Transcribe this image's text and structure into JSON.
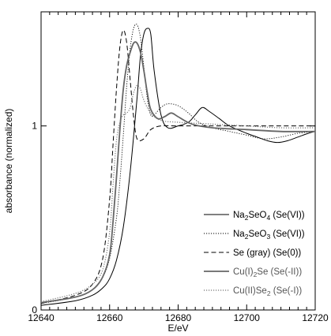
{
  "chart_data": {
    "type": "line",
    "xlabel": "E/eV",
    "ylabel": "absorbance (normalized)",
    "xlim": [
      12640,
      12720
    ],
    "ylim": [
      0,
      1.62
    ],
    "x_ticks": [
      12640,
      12660,
      12680,
      12700,
      12720
    ],
    "x_tick_labels": [
      "12640",
      "12660",
      "12680",
      "12700",
      "12720"
    ],
    "y_ticks": [
      0,
      1
    ],
    "y_tick_labels": [
      "0",
      "1"
    ],
    "grid": false,
    "legend_position": "bottom-right",
    "series": [
      {
        "name": "Na2SeO4 (Se(VI))",
        "legend_parts": [
          [
            "Na",
            ""
          ],
          [
            "2",
            "sub"
          ],
          [
            "SeO",
            ""
          ],
          [
            "4",
            "sub"
          ],
          [
            " (Se(VI))",
            ""
          ]
        ],
        "color": "#000000",
        "stroke_width": 1.0,
        "dash": "",
        "x": [
          12640,
          12650,
          12655,
          12658,
          12660,
          12662,
          12664,
          12666,
          12668,
          12669,
          12670,
          12671,
          12672,
          12673,
          12675,
          12677,
          12680,
          12683,
          12685,
          12687,
          12689,
          12692,
          12695,
          12700,
          12703,
          12706,
          12709,
          12712,
          12715,
          12718,
          12720
        ],
        "y": [
          0.025,
          0.05,
          0.08,
          0.12,
          0.17,
          0.27,
          0.45,
          0.75,
          1.15,
          1.38,
          1.5,
          1.53,
          1.5,
          1.3,
          1.06,
          0.99,
          1.0,
          1.02,
          1.06,
          1.1,
          1.08,
          1.04,
          1.0,
          0.96,
          0.94,
          0.92,
          0.91,
          0.92,
          0.94,
          0.96,
          0.97
        ]
      },
      {
        "name": "Na2SeO3 (Se(VI))",
        "legend_parts": [
          [
            "Na",
            ""
          ],
          [
            "2",
            "sub"
          ],
          [
            "SeO",
            ""
          ],
          [
            "3",
            "sub"
          ],
          [
            " (Se(VI))",
            ""
          ]
        ],
        "color": "#000000",
        "stroke_width": 0.9,
        "dash": "1.2,1.8",
        "x": [
          12640,
          12650,
          12655,
          12658,
          12660,
          12662,
          12663,
          12664,
          12665,
          12666,
          12667,
          12668,
          12669,
          12670,
          12671,
          12672,
          12673,
          12675,
          12677,
          12680,
          12683,
          12686,
          12690,
          12695,
          12700,
          12705,
          12710,
          12715,
          12720
        ],
        "y": [
          0.035,
          0.07,
          0.11,
          0.18,
          0.28,
          0.5,
          0.7,
          0.95,
          1.22,
          1.42,
          1.53,
          1.55,
          1.48,
          1.32,
          1.15,
          1.06,
          1.06,
          1.1,
          1.12,
          1.11,
          1.07,
          1.02,
          0.99,
          0.97,
          0.95,
          0.93,
          0.94,
          0.96,
          0.97
        ]
      },
      {
        "name": "Se (gray) (Se(0))",
        "legend_parts": [
          [
            "Se (gray)  (Se(0))",
            ""
          ]
        ],
        "color": "#000000",
        "stroke_width": 1.0,
        "dash": "6,3.5",
        "x": [
          12640,
          12650,
          12655,
          12658,
          12660,
          12661,
          12662,
          12663,
          12664,
          12665,
          12666,
          12667,
          12668,
          12670,
          12672,
          12675,
          12680,
          12690,
          12700,
          12710,
          12720
        ],
        "y": [
          0.035,
          0.08,
          0.14,
          0.28,
          0.6,
          0.9,
          1.2,
          1.43,
          1.52,
          1.45,
          1.25,
          1.05,
          0.93,
          0.93,
          0.98,
          1.0,
          1.0,
          1.0,
          1.0,
          1.0,
          1.0
        ]
      },
      {
        "name": "Cu(I)2Se (Se(-II))",
        "legend_parts": [
          [
            "Cu(I)",
            ""
          ],
          [
            "2",
            "sub"
          ],
          [
            "Se (Se(-II))",
            ""
          ]
        ],
        "color": "#666666",
        "stroke_width": 1.8,
        "dash": "",
        "x": [
          12640,
          12650,
          12655,
          12658,
          12660,
          12661,
          12662,
          12663,
          12664,
          12665,
          12666,
          12667,
          12668,
          12669,
          12670,
          12671,
          12672,
          12674,
          12676,
          12678,
          12680,
          12684,
          12690,
          12700,
          12710,
          12720
        ],
        "y": [
          0.04,
          0.07,
          0.11,
          0.18,
          0.3,
          0.48,
          0.72,
          0.98,
          1.2,
          1.33,
          1.4,
          1.45,
          1.45,
          1.4,
          1.3,
          1.18,
          1.09,
          1.04,
          1.05,
          1.07,
          1.05,
          1.01,
          0.99,
          0.98,
          0.97,
          0.97
        ]
      },
      {
        "name": "Cu(II)Se2 (Se(-I))",
        "legend_parts": [
          [
            "Cu(II)Se",
            ""
          ],
          [
            "2",
            "sub"
          ],
          [
            " (Se(-I))",
            ""
          ]
        ],
        "color": "#777777",
        "stroke_width": 1.2,
        "dash": "1.2,1.8",
        "x": [
          12640,
          12650,
          12655,
          12658,
          12660,
          12661,
          12662,
          12663,
          12664,
          12665,
          12666,
          12667,
          12668,
          12669,
          12670,
          12672,
          12675,
          12680,
          12690,
          12700,
          12710,
          12720
        ],
        "y": [
          0.045,
          0.09,
          0.14,
          0.22,
          0.42,
          0.68,
          0.92,
          1.02,
          1.06,
          1.07,
          1.1,
          1.18,
          1.22,
          1.2,
          1.14,
          1.07,
          1.03,
          1.02,
          1.01,
          1.0,
          0.99,
          0.99
        ]
      }
    ]
  }
}
